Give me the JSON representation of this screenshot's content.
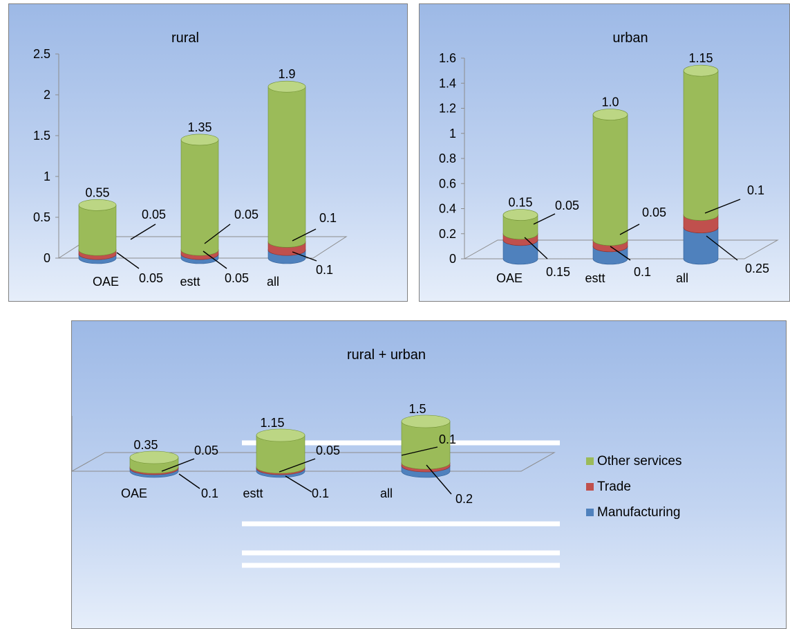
{
  "colors": {
    "Manufacturing": {
      "face": "#4f81bd",
      "dark": "#2f5d95",
      "light": "#7ba3d6"
    },
    "Trade": {
      "face": "#c0504d",
      "dark": "#922f2c",
      "light": "#dc7c79"
    },
    "Other services": {
      "face": "#9bbb59",
      "dark": "#6f8f32",
      "light": "#bcd684"
    }
  },
  "chart_data": [
    {
      "type": "bar",
      "title": "rural",
      "categories": [
        "OAE",
        "estt",
        "all"
      ],
      "ylim": [
        0,
        2.5
      ],
      "yticks": [
        "0",
        "0.5",
        "1",
        "1.5",
        "2",
        "2.5"
      ],
      "ytick_values": [
        0,
        0.5,
        1,
        1.5,
        2,
        2.5
      ],
      "series": [
        {
          "name": "Manufacturing",
          "values": [
            0.05,
            0.05,
            0.1
          ],
          "labels": [
            "0.05",
            "0.05",
            "0.1"
          ]
        },
        {
          "name": "Trade",
          "values": [
            0.05,
            0.05,
            0.1
          ],
          "labels": [
            "0.05",
            "0.05",
            "0.1"
          ]
        },
        {
          "name": "Other services",
          "values": [
            0.55,
            1.35,
            1.9
          ],
          "labels": [
            "0.55",
            "1.35",
            "1.9"
          ]
        }
      ]
    },
    {
      "type": "bar",
      "title": "urban",
      "categories": [
        "OAE",
        "estt",
        "all"
      ],
      "ylim": [
        0,
        1.6
      ],
      "yticks": [
        "0",
        "0.2",
        "0.4",
        "0.6",
        "0.8",
        "1",
        "1.2",
        "1.4",
        "1.6"
      ],
      "ytick_values": [
        0,
        0.2,
        0.4,
        0.6,
        0.8,
        1,
        1.2,
        1.4,
        1.6
      ],
      "series": [
        {
          "name": "Manufacturing",
          "values": [
            0.15,
            0.1,
            0.25
          ],
          "labels": [
            "0.15",
            "0.1",
            "0.25"
          ]
        },
        {
          "name": "Trade",
          "values": [
            0.05,
            0.05,
            0.1
          ],
          "labels": [
            "0.05",
            "0.05",
            "0.1"
          ]
        },
        {
          "name": "Other services",
          "values": [
            0.15,
            1.0,
            1.15
          ],
          "labels": [
            "0.15",
            "1.0",
            "1.15"
          ]
        }
      ]
    },
    {
      "type": "bar",
      "title": "rural + urban",
      "categories": [
        "OAE",
        "estt",
        "all"
      ],
      "ylim": [
        0,
        2
      ],
      "yticks": [
        "0",
        "0.5",
        "1",
        "1.5",
        "2"
      ],
      "ytick_values": [
        0,
        0.5,
        1,
        1.5,
        2
      ],
      "legend": "right",
      "series": [
        {
          "name": "Manufacturing",
          "values": [
            0.1,
            0.1,
            0.2
          ],
          "labels": [
            "0.1",
            "0.1",
            "0.2"
          ]
        },
        {
          "name": "Trade",
          "values": [
            0.05,
            0.05,
            0.1
          ],
          "labels": [
            "0.05",
            "0.05",
            "0.1"
          ]
        },
        {
          "name": "Other services",
          "values": [
            0.35,
            1.15,
            1.5
          ],
          "labels": [
            "0.35",
            "1.15",
            "1.5"
          ]
        }
      ]
    }
  ]
}
